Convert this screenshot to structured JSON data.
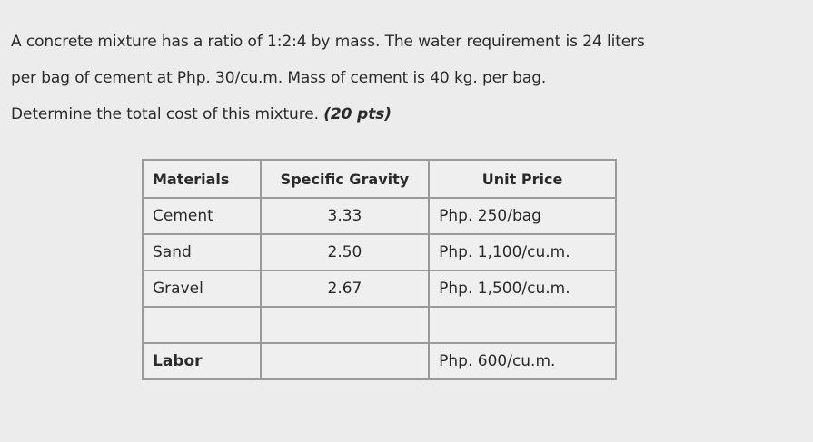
{
  "problem": {
    "line1": "A concrete mixture has a ratio of 1:2:4 by mass. The water requirement is 24 liters",
    "line2": "per bag of cement at Php. 30/cu.m. Mass of cement is 40 kg. per bag.",
    "line3_text": "Determine the total cost of this mixture. ",
    "line3_points": "(20 pts)"
  },
  "table": {
    "headers": [
      "Materials",
      "Specific Gravity",
      "Unit Price"
    ],
    "rows": [
      {
        "material": "Cement",
        "gravity": "3.33",
        "price": "Php. 250/bag"
      },
      {
        "material": "Sand",
        "gravity": "2.50",
        "price": "Php. 1,100/cu.m."
      },
      {
        "material": "Gravel",
        "gravity": "2.67",
        "price": "Php. 1,500/cu.m."
      },
      {
        "material": "",
        "gravity": "",
        "price": ""
      },
      {
        "material": "Labor",
        "gravity": "",
        "price": "Php. 600/cu.m."
      }
    ]
  }
}
